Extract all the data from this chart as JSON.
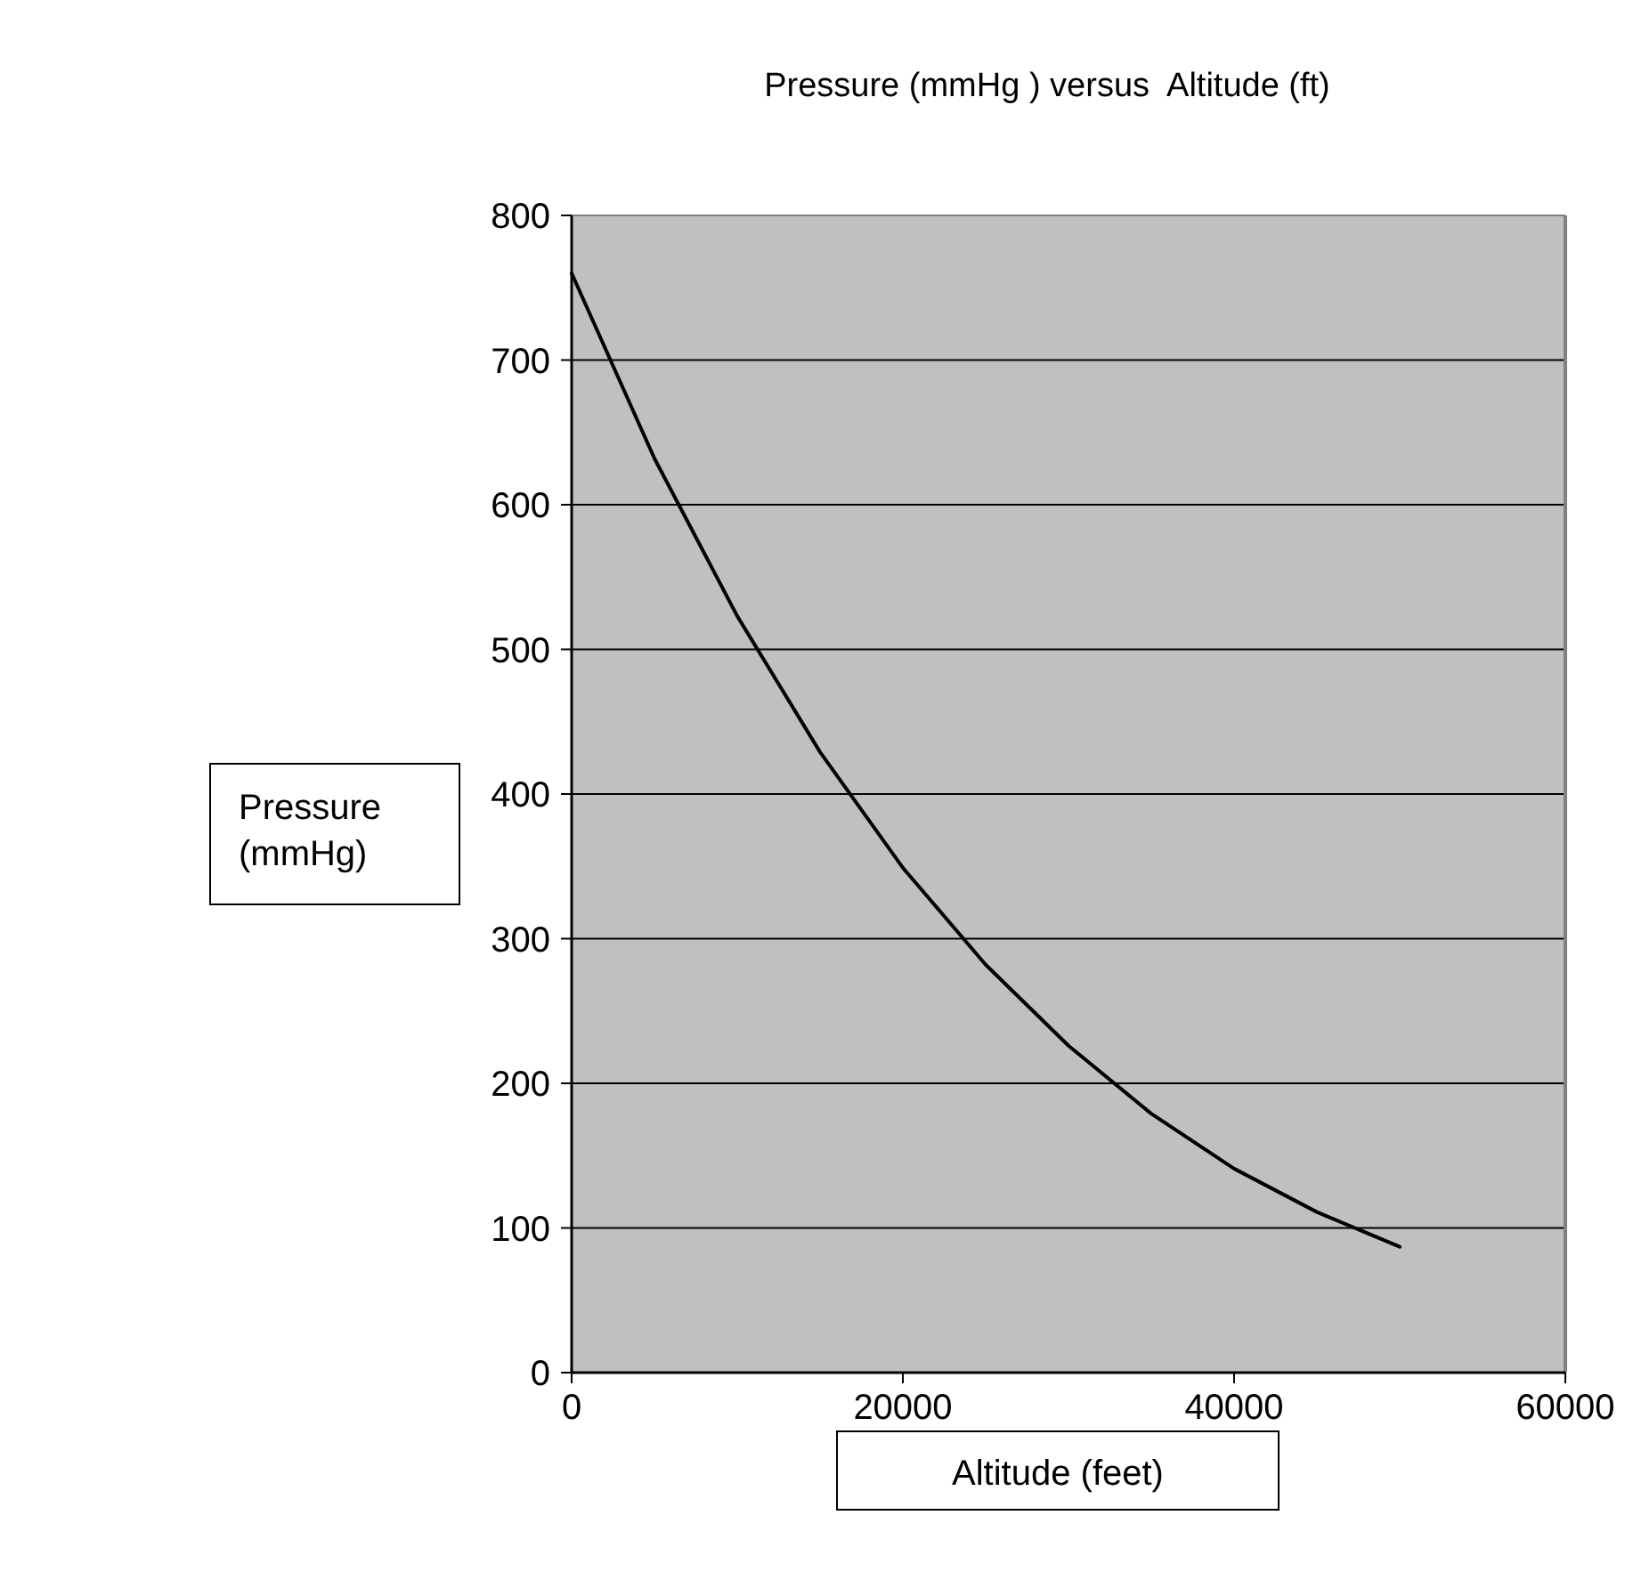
{
  "chart_data": {
    "type": "line",
    "title": "Pressure (mmHg ) versus  Altitude (ft)",
    "xlabel": "Altitude (feet)",
    "ylabel": "Pressure (mmHg)",
    "x": [
      0,
      5000,
      10000,
      15000,
      20000,
      25000,
      30000,
      35000,
      40000,
      45000,
      50000
    ],
    "series": [
      {
        "color": "#000000",
        "values": [
          760,
          632,
          523,
          429,
          349,
          282,
          226,
          179,
          141,
          111,
          87
        ]
      }
    ],
    "xlim": [
      0,
      60000
    ],
    "xticks": [
      0,
      20000,
      40000,
      60000
    ],
    "ylim": [
      0,
      800
    ],
    "yticks": [
      0,
      100,
      200,
      300,
      400,
      500,
      600,
      700,
      800
    ],
    "grid": "y",
    "marker": "none",
    "line_style": "solid"
  }
}
